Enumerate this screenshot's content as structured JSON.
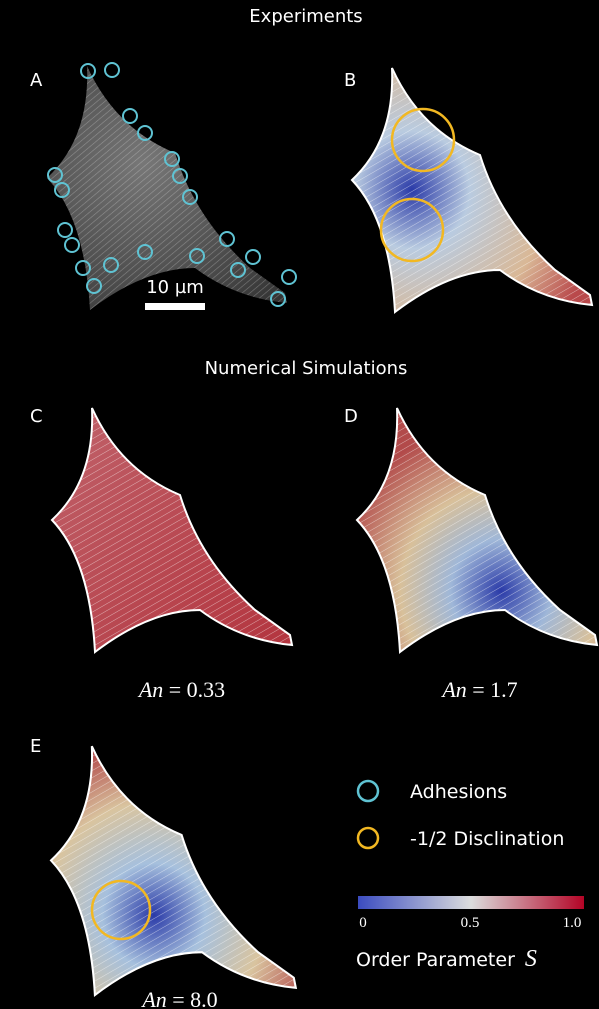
{
  "sections": [
    "Experiments",
    "Numerical Simulations"
  ],
  "panels": [
    "A",
    "B",
    "C",
    "D",
    "E"
  ],
  "scale_bar": "10 µm",
  "captions": [
    {
      "symbol": "An",
      "rest": " = 0.33"
    },
    {
      "symbol": "An",
      "rest": " = 1.7"
    },
    {
      "symbol": "An",
      "rest": " = 8.0"
    }
  ],
  "legend": [
    "Adhesions",
    "-1/2 Disclination"
  ],
  "colorbar": {
    "ticks": [
      "0",
      "0.5",
      "1.0"
    ],
    "label": "Order  Parameter",
    "symbol": "S"
  }
}
